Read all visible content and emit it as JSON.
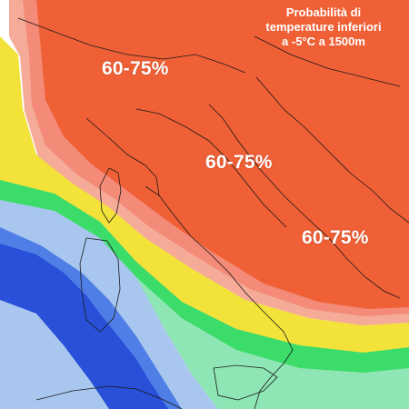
{
  "map": {
    "title_lines": [
      "Probabilità di",
      "temperature inferiori",
      "a -5°C a 1500m"
    ],
    "region_labels": [
      "60-75%",
      "60-75%",
      "60-75%"
    ],
    "colors": {
      "band_60_75": "#f06036",
      "band_pink": "#f48a78",
      "band_light_pink": "#f6aa98",
      "band_yellow": "#f2e23a",
      "band_green": "#3cdc6a",
      "band_light_green": "#8ee6b4",
      "band_light_blue": "#a9c7ee",
      "band_mid_blue": "#4f7fe6",
      "band_dark_blue": "#2a4fd8",
      "border_line": "#1a1a1a",
      "text": "#ffffff"
    }
  }
}
